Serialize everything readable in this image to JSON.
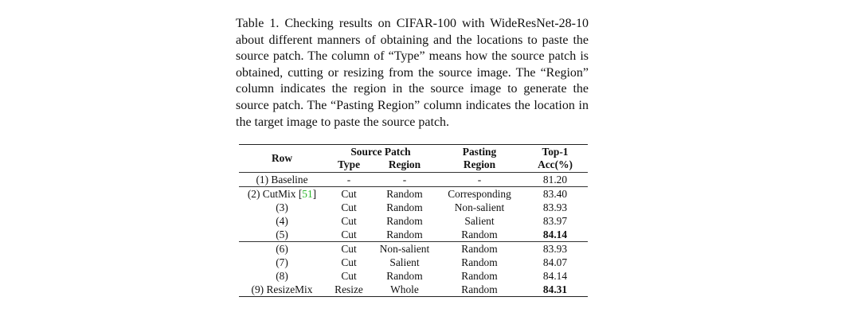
{
  "caption": {
    "label": "Table 1.",
    "text": "Checking results on CIFAR-100 with WideResNet-28-10 about different manners of obtaining and the locations to paste the source patch. The column of “Type” means how the source patch is obtained, cutting or resizing from the source image. The “Region” column indicates the region in the source image to generate the source patch. The “Pasting Region” column indicates the location in the target image to paste the source patch."
  },
  "table": {
    "headers": {
      "row": "Row",
      "source_patch": "Source Patch",
      "type": "Type",
      "region": "Region",
      "pasting_line1": "Pasting",
      "pasting_line2": "Region",
      "acc_line1": "Top-1",
      "acc_line2": "Acc(%)"
    },
    "rows": [
      {
        "row": "(1) Baseline",
        "type": "-",
        "region": "-",
        "pasting": "-",
        "acc": "81.20"
      },
      {
        "row": "(2) CutMix [",
        "cite": "51",
        "row_end": "]",
        "type": "Cut",
        "region": "Random",
        "pasting": "Corresponding",
        "acc": "83.40"
      },
      {
        "row": "(3)",
        "type": "Cut",
        "region": "Random",
        "pasting": "Non-salient",
        "acc": "83.93"
      },
      {
        "row": "(4)",
        "type": "Cut",
        "region": "Random",
        "pasting": "Salient",
        "acc": "83.97"
      },
      {
        "row": "(5)",
        "type": "Cut",
        "region": "Random",
        "pasting": "Random",
        "acc": "84.14"
      },
      {
        "row": "(6)",
        "type": "Cut",
        "region": "Non-salient",
        "pasting": "Random",
        "acc": "83.93"
      },
      {
        "row": "(7)",
        "type": "Cut",
        "region": "Salient",
        "pasting": "Random",
        "acc": "84.07"
      },
      {
        "row": "(8)",
        "type": "Cut",
        "region": "Random",
        "pasting": "Random",
        "acc": "84.14"
      },
      {
        "row": "(9) ResizeMix",
        "type": "Resize",
        "region": "Whole",
        "pasting": "Random",
        "acc": "84.31"
      }
    ],
    "citation_color": "#2bb52b"
  }
}
